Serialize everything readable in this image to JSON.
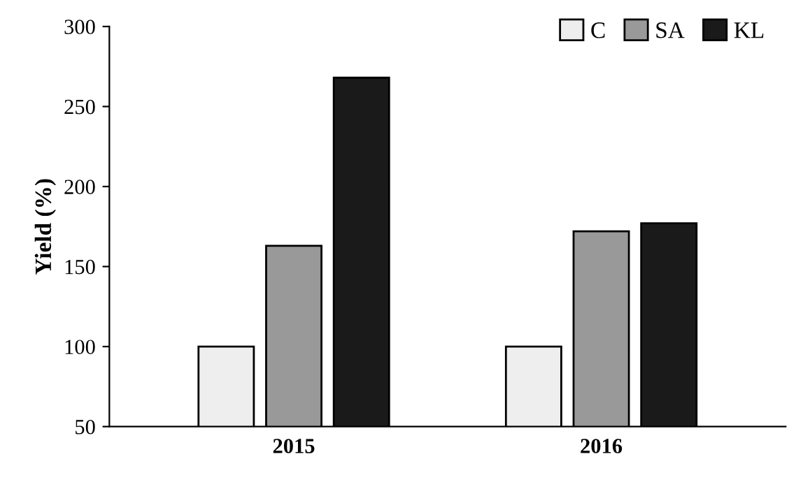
{
  "chart_data": {
    "type": "bar",
    "ylabel": "Yield (%)",
    "categories": [
      "2015",
      "2016"
    ],
    "series": [
      {
        "name": "C",
        "color": "#eeeeee",
        "values": [
          100,
          100
        ]
      },
      {
        "name": "SA",
        "color": "#999999",
        "values": [
          163,
          172
        ]
      },
      {
        "name": "KL",
        "color": "#1a1a1a",
        "values": [
          268,
          177
        ]
      }
    ],
    "ylim": [
      50,
      300
    ],
    "yticks": [
      50,
      100,
      150,
      200,
      250,
      300
    ],
    "grid": false,
    "legend": "top right"
  }
}
